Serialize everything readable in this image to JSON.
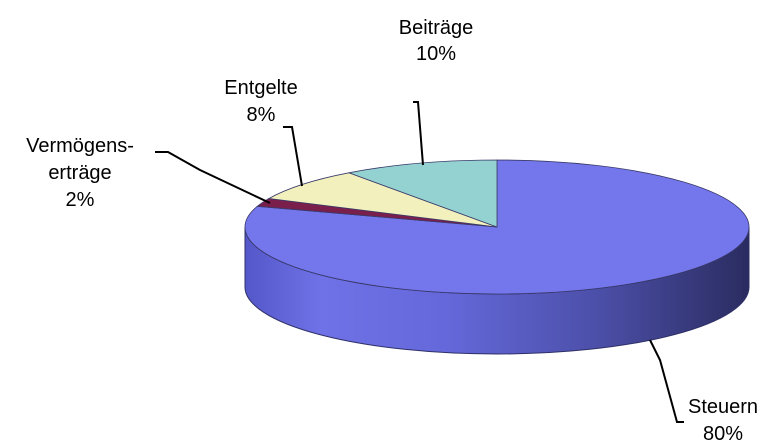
{
  "chart_data": {
    "type": "pie",
    "style": "3d",
    "slices": [
      {
        "name": "Steuern",
        "line1": "Steuern",
        "line2": "",
        "value": 80,
        "label": "80%",
        "color": "#7477EC"
      },
      {
        "name": "Vermögenserträge",
        "line1": "Vermögens-",
        "line2": "erträge",
        "value": 2,
        "label": "2%",
        "color": "#7A1E4C"
      },
      {
        "name": "Entgelte",
        "line1": "Entgelte",
        "line2": "",
        "value": 8,
        "label": "8%",
        "color": "#F2F0BC"
      },
      {
        "name": "Beiträge",
        "line1": "Beiträge",
        "line2": "",
        "value": 10,
        "label": "10%",
        "color": "#93D2D0"
      }
    ]
  }
}
